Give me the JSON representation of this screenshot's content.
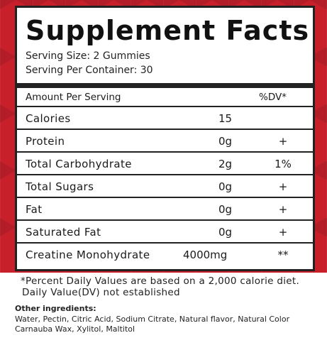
{
  "title": "Supplement Facts",
  "serving_size": "Serving Size: 2 Gummies",
  "servings_per_container": "Serving Per Container: 30",
  "amount_header": "Amount Per Serving",
  "dv_header": "%DV*",
  "nutrients": [
    {
      "name": "Calories",
      "amount": "15",
      "dv": ""
    },
    {
      "name": "Protein",
      "amount": "0g",
      "dv": "+"
    },
    {
      "name": "Total Carbohydrate",
      "amount": "2g",
      "dv": "1%"
    },
    {
      "name": "Total Sugars",
      "amount": "0g",
      "dv": "+"
    },
    {
      "name": "Fat",
      "amount": "0g",
      "dv": "+"
    },
    {
      "name": "Saturated Fat",
      "amount": "0g",
      "dv": "+"
    },
    {
      "name": "Creatine Monohydrate",
      "amount": "4000mg",
      "dv": "**"
    }
  ],
  "footnote_1": "*Percent Daily Values are based on a 2,000 calorie diet.",
  "footnote_2": "Daily Value(DV) not established",
  "ingredients_heading": "Other ingredients:",
  "ingredients_line_1": "Water, Pectin, Citric Acid, Sodium Citrate, Natural flavor, Natural Color",
  "ingredients_line_2": "Carnauba Wax, Xylitol, Maltitol",
  "colors": {
    "background_band": "#c7202b",
    "panel_border": "#222222"
  }
}
